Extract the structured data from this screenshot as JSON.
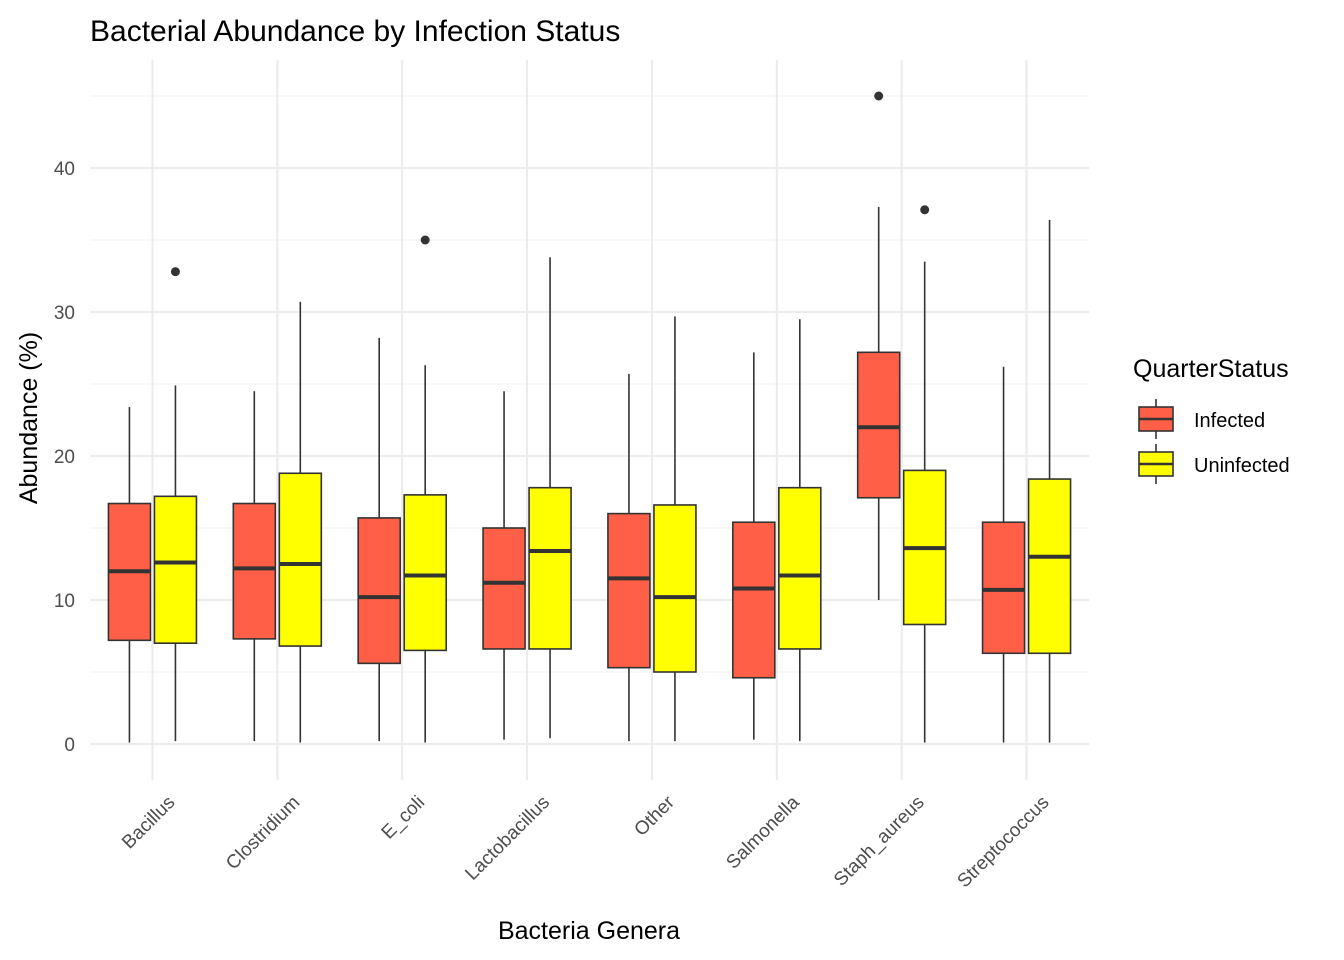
{
  "chart_data": {
    "type": "boxplot",
    "title": "Bacterial Abundance by Infection Status",
    "xlabel": "Bacteria Genera",
    "ylabel": "Abundance (%)",
    "ylim": [
      -2.5,
      47.5
    ],
    "yticks": [
      0,
      10,
      20,
      30,
      40
    ],
    "grid": true,
    "legend": {
      "title": "QuarterStatus",
      "placement": "right",
      "entries": [
        {
          "label": "Infected",
          "color": "#FF5F46"
        },
        {
          "label": "Uninfected",
          "color": "#FFFF00"
        }
      ]
    },
    "categories": [
      "Bacillus",
      "Clostridium",
      "E_coli",
      "Lactobacillus",
      "Other",
      "Salmonella",
      "Staph_aureus",
      "Streptococcus"
    ],
    "series": [
      {
        "name": "Infected",
        "color": "#FF5F46",
        "boxes": [
          {
            "min": 0.1,
            "q1": 7.2,
            "median": 12.0,
            "q3": 16.7,
            "max": 23.4,
            "outliers": []
          },
          {
            "min": 0.2,
            "q1": 7.3,
            "median": 12.2,
            "q3": 16.7,
            "max": 24.5,
            "outliers": []
          },
          {
            "min": 0.2,
            "q1": 5.6,
            "median": 10.2,
            "q3": 15.7,
            "max": 28.2,
            "outliers": []
          },
          {
            "min": 0.3,
            "q1": 6.6,
            "median": 11.2,
            "q3": 15.0,
            "max": 24.5,
            "outliers": []
          },
          {
            "min": 0.2,
            "q1": 5.3,
            "median": 11.5,
            "q3": 16.0,
            "max": 25.7,
            "outliers": []
          },
          {
            "min": 0.3,
            "q1": 4.6,
            "median": 10.8,
            "q3": 15.4,
            "max": 27.2,
            "outliers": []
          },
          {
            "min": 10.0,
            "q1": 17.1,
            "median": 22.0,
            "q3": 27.2,
            "max": 37.3,
            "outliers": [
              45.0
            ]
          },
          {
            "min": 0.1,
            "q1": 6.3,
            "median": 10.7,
            "q3": 15.4,
            "max": 26.2,
            "outliers": []
          }
        ]
      },
      {
        "name": "Uninfected",
        "color": "#FFFF00",
        "boxes": [
          {
            "min": 0.2,
            "q1": 7.0,
            "median": 12.6,
            "q3": 17.2,
            "max": 24.9,
            "outliers": [
              32.8
            ]
          },
          {
            "min": 0.1,
            "q1": 6.8,
            "median": 12.5,
            "q3": 18.8,
            "max": 30.7,
            "outliers": []
          },
          {
            "min": 0.1,
            "q1": 6.5,
            "median": 11.7,
            "q3": 17.3,
            "max": 26.3,
            "outliers": [
              35.0
            ]
          },
          {
            "min": 0.4,
            "q1": 6.6,
            "median": 13.4,
            "q3": 17.8,
            "max": 33.8,
            "outliers": []
          },
          {
            "min": 0.2,
            "q1": 5.0,
            "median": 10.2,
            "q3": 16.6,
            "max": 29.7,
            "outliers": []
          },
          {
            "min": 0.2,
            "q1": 6.6,
            "median": 11.7,
            "q3": 17.8,
            "max": 29.5,
            "outliers": []
          },
          {
            "min": 0.1,
            "q1": 8.3,
            "median": 13.6,
            "q3": 19.0,
            "max": 33.5,
            "outliers": [
              37.1
            ]
          },
          {
            "min": 0.1,
            "q1": 6.3,
            "median": 13.0,
            "q3": 18.4,
            "max": 36.4,
            "outliers": []
          }
        ]
      }
    ]
  }
}
